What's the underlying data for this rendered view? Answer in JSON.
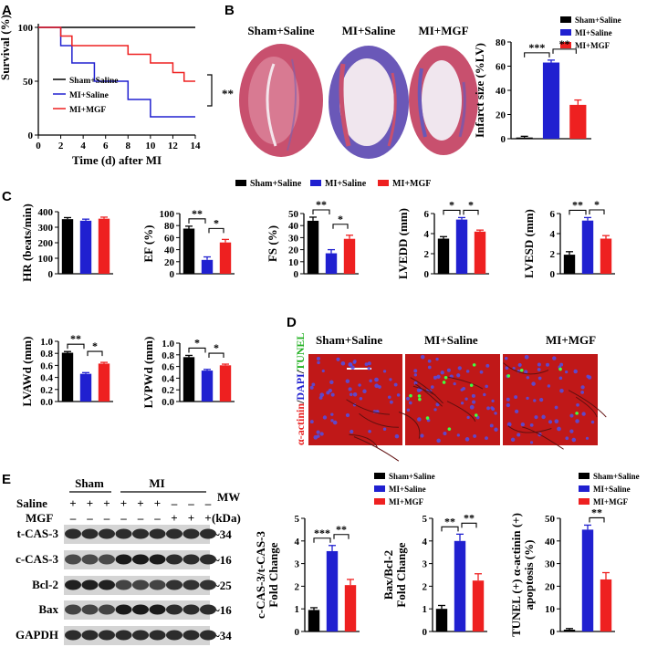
{
  "colors": {
    "sham": "#000000",
    "mi_saline": "#2020d0",
    "mi_mgf": "#ee2020",
    "tissue": "#cc3355",
    "tunel_bg": "#c01818"
  },
  "legend": [
    "Sham+Saline",
    "MI+Saline",
    "MI+MGF"
  ],
  "panelA": {
    "letter": "A",
    "ylabel": "Survival (%)",
    "xlabel": "Time (d) after MI",
    "sig": "**",
    "chart_data": {
      "type": "line",
      "xlabel": "Time (d) after MI",
      "ylabel": "Survival (%)",
      "xlim": [
        0,
        14
      ],
      "ylim": [
        0,
        100
      ],
      "xticks": [
        "0",
        "2",
        "4",
        "6",
        "8",
        "10",
        "12",
        "14"
      ],
      "yticks": [
        "0",
        "50",
        "100"
      ],
      "series": [
        {
          "name": "Sham+Saline",
          "points": [
            [
              0,
              100
            ],
            [
              14,
              100
            ]
          ]
        },
        {
          "name": "MI+Saline",
          "points": [
            [
              0,
              100
            ],
            [
              2,
              100
            ],
            [
              2,
              83
            ],
            [
              3,
              83
            ],
            [
              3,
              67
            ],
            [
              5,
              67
            ],
            [
              5,
              50
            ],
            [
              8,
              50
            ],
            [
              8,
              33
            ],
            [
              10,
              33
            ],
            [
              10,
              17
            ],
            [
              14,
              17
            ]
          ]
        },
        {
          "name": "MI+MGF",
          "points": [
            [
              0,
              100
            ],
            [
              2,
              100
            ],
            [
              2,
              92
            ],
            [
              3,
              92
            ],
            [
              3,
              83
            ],
            [
              8,
              83
            ],
            [
              8,
              75
            ],
            [
              10,
              75
            ],
            [
              10,
              67
            ],
            [
              12,
              67
            ],
            [
              12,
              58
            ],
            [
              13,
              58
            ],
            [
              13,
              50
            ],
            [
              14,
              50
            ]
          ]
        }
      ]
    }
  },
  "panelB": {
    "letter": "B",
    "images": [
      "Sham+Saline",
      "MI+Saline",
      "MI+MGF"
    ],
    "chart_data": {
      "type": "bar",
      "ylabel": "Infarct size (%LV)",
      "ylim": [
        0,
        80
      ],
      "yticks": [
        "0",
        "20",
        "40",
        "60",
        "80"
      ],
      "categories": [
        "Sham+Saline",
        "MI+Saline",
        "MI+MGF"
      ],
      "values": [
        1,
        63,
        28
      ],
      "errors": [
        1,
        2,
        4
      ],
      "sig": [
        {
          "a": 0,
          "b": 1,
          "label": "***",
          "level": 0
        },
        {
          "a": 1,
          "b": 2,
          "label": "**",
          "level": 1
        }
      ]
    }
  },
  "panelC": {
    "letter": "C",
    "charts": [
      {
        "type": "bar",
        "ylabel": "HR (beats/min)",
        "ylim": [
          0,
          400
        ],
        "yticks": [
          "0",
          "100",
          "200",
          "300",
          "400"
        ],
        "categories": [
          "Sham+Saline",
          "MI+Saline",
          "MI+MGF"
        ],
        "values": [
          352,
          342,
          355
        ],
        "errors": [
          10,
          10,
          10
        ],
        "sig": []
      },
      {
        "type": "bar",
        "ylabel": "EF (%)",
        "ylim": [
          0,
          100
        ],
        "yticks": [
          "0",
          "20",
          "40",
          "60",
          "80",
          "100"
        ],
        "categories": [
          "Sham+Saline",
          "MI+Saline",
          "MI+MGF"
        ],
        "values": [
          75,
          23,
          52
        ],
        "errors": [
          4,
          5,
          5
        ],
        "sig": [
          {
            "a": 0,
            "b": 1,
            "label": "**",
            "level": 0
          },
          {
            "a": 1,
            "b": 2,
            "label": "*",
            "level": 1
          }
        ]
      },
      {
        "type": "bar",
        "ylabel": "FS (%)",
        "ylim": [
          0,
          50
        ],
        "yticks": [
          "0",
          "10",
          "20",
          "30",
          "40",
          "50"
        ],
        "categories": [
          "Sham+Saline",
          "MI+Saline",
          "MI+MGF"
        ],
        "values": [
          44,
          17,
          29
        ],
        "errors": [
          3,
          3,
          3
        ],
        "sig": [
          {
            "a": 0,
            "b": 1,
            "label": "**",
            "level": 0
          },
          {
            "a": 1,
            "b": 2,
            "label": "*",
            "level": 1
          }
        ]
      },
      {
        "type": "bar",
        "ylabel": "LVEDD (mm)",
        "ylim": [
          0,
          6
        ],
        "yticks": [
          "0",
          "2",
          "4",
          "6"
        ],
        "categories": [
          "Sham+Saline",
          "MI+Saline",
          "MI+MGF"
        ],
        "values": [
          3.5,
          5.4,
          4.2
        ],
        "errors": [
          0.2,
          0.2,
          0.15
        ],
        "sig": [
          {
            "a": 0,
            "b": 1,
            "label": "*",
            "level": 0
          },
          {
            "a": 1,
            "b": 2,
            "label": "*",
            "level": 0
          }
        ]
      },
      {
        "type": "bar",
        "ylabel": "LVESD (mm)",
        "ylim": [
          0,
          6
        ],
        "yticks": [
          "0",
          "2",
          "4",
          "6"
        ],
        "categories": [
          "Sham+Saline",
          "MI+Saline",
          "MI+MGF"
        ],
        "values": [
          1.9,
          5.3,
          3.5
        ],
        "errors": [
          0.3,
          0.3,
          0.3
        ],
        "sig": [
          {
            "a": 0,
            "b": 1,
            "label": "**",
            "level": 0
          },
          {
            "a": 1,
            "b": 2,
            "label": "*",
            "level": 1
          }
        ]
      },
      {
        "type": "bar",
        "ylabel": "LVAWd (mm)",
        "ylim": [
          0,
          1.0
        ],
        "yticks": [
          "0.0",
          "0.2",
          "0.4",
          "0.6",
          "0.8",
          "1.0"
        ],
        "categories": [
          "Sham+Saline",
          "MI+Saline",
          "MI+MGF"
        ],
        "values": [
          0.81,
          0.46,
          0.63
        ],
        "errors": [
          0.02,
          0.02,
          0.02
        ],
        "sig": [
          {
            "a": 0,
            "b": 1,
            "label": "**",
            "level": 0
          },
          {
            "a": 1,
            "b": 2,
            "label": "*",
            "level": 1
          }
        ]
      },
      {
        "type": "bar",
        "ylabel": "LVPWd (mm)",
        "ylim": [
          0,
          1.0
        ],
        "yticks": [
          "0.0",
          "0.2",
          "0.4",
          "0.6",
          "0.8",
          "1.0"
        ],
        "categories": [
          "Sham+Saline",
          "MI+Saline",
          "MI+MGF"
        ],
        "values": [
          0.76,
          0.53,
          0.62
        ],
        "errors": [
          0.03,
          0.02,
          0.02
        ],
        "sig": [
          {
            "a": 0,
            "b": 1,
            "label": "*",
            "level": 0
          },
          {
            "a": 1,
            "b": 2,
            "label": "*",
            "level": 1
          }
        ]
      }
    ]
  },
  "panelD": {
    "letter": "D",
    "stain": [
      "α-actinin",
      "/",
      "DAPI",
      "/",
      "TUNEL"
    ],
    "images": [
      "Sham+Saline",
      "MI+Saline",
      "MI+MGF"
    ]
  },
  "panelE": {
    "letter": "E",
    "groups": [
      "Sham",
      "MI"
    ],
    "mw_header": [
      "MW",
      "(kDa)"
    ],
    "rows": [
      {
        "label": "Saline",
        "signs": [
          "+",
          "+",
          "+",
          "+",
          "+",
          "+",
          "–",
          "–",
          "–"
        ]
      },
      {
        "label": "MGF",
        "signs": [
          "–",
          "–",
          "–",
          "–",
          "–",
          "–",
          "+",
          "+",
          "+"
        ]
      }
    ],
    "blots": [
      {
        "name": "t-CAS-3",
        "mw": "~34"
      },
      {
        "name": "c-CAS-3",
        "mw": "~16"
      },
      {
        "name": "Bcl-2",
        "mw": "~25"
      },
      {
        "name": "Bax",
        "mw": "~16"
      },
      {
        "name": "GAPDH",
        "mw": "~34"
      }
    ],
    "charts": [
      {
        "type": "bar",
        "ylabel": [
          "c-CAS-3/t-CAS-3",
          "Fold Change"
        ],
        "ylim": [
          0,
          5
        ],
        "yticks": [
          "0",
          "1",
          "2",
          "3",
          "4",
          "5"
        ],
        "categories": [
          "Sham+Saline",
          "MI+Saline",
          "MI+MGF"
        ],
        "values": [
          0.95,
          3.55,
          2.05
        ],
        "errors": [
          0.1,
          0.25,
          0.25
        ],
        "sig": [
          {
            "a": 0,
            "b": 1,
            "label": "***",
            "level": 0
          },
          {
            "a": 1,
            "b": 2,
            "label": "**",
            "level": 1
          }
        ]
      },
      {
        "type": "bar",
        "ylabel": [
          "Bax/Bcl-2",
          "Fold Change"
        ],
        "ylim": [
          0,
          5
        ],
        "yticks": [
          "0",
          "1",
          "2",
          "3",
          "4",
          "5"
        ],
        "categories": [
          "Sham+Saline",
          "MI+Saline",
          "MI+MGF"
        ],
        "values": [
          1.0,
          4.0,
          2.25
        ],
        "errors": [
          0.15,
          0.3,
          0.3
        ],
        "sig": [
          {
            "a": 0,
            "b": 1,
            "label": "**",
            "level": 0
          },
          {
            "a": 1,
            "b": 2,
            "label": "**",
            "level": 1
          }
        ]
      },
      {
        "type": "bar",
        "ylabel": [
          "TUNEL (+) α-actinin (+)",
          "apoptosis (%)"
        ],
        "ylim": [
          0,
          50
        ],
        "yticks": [
          "0",
          "10",
          "20",
          "30",
          "40",
          "50"
        ],
        "categories": [
          "Sham+Saline",
          "MI+Saline",
          "MI+MGF"
        ],
        "values": [
          0.8,
          45,
          23
        ],
        "errors": [
          0.5,
          2,
          3
        ],
        "sig": [
          {
            "a": 1,
            "b": 2,
            "label": "**",
            "level": 0
          }
        ]
      }
    ]
  }
}
